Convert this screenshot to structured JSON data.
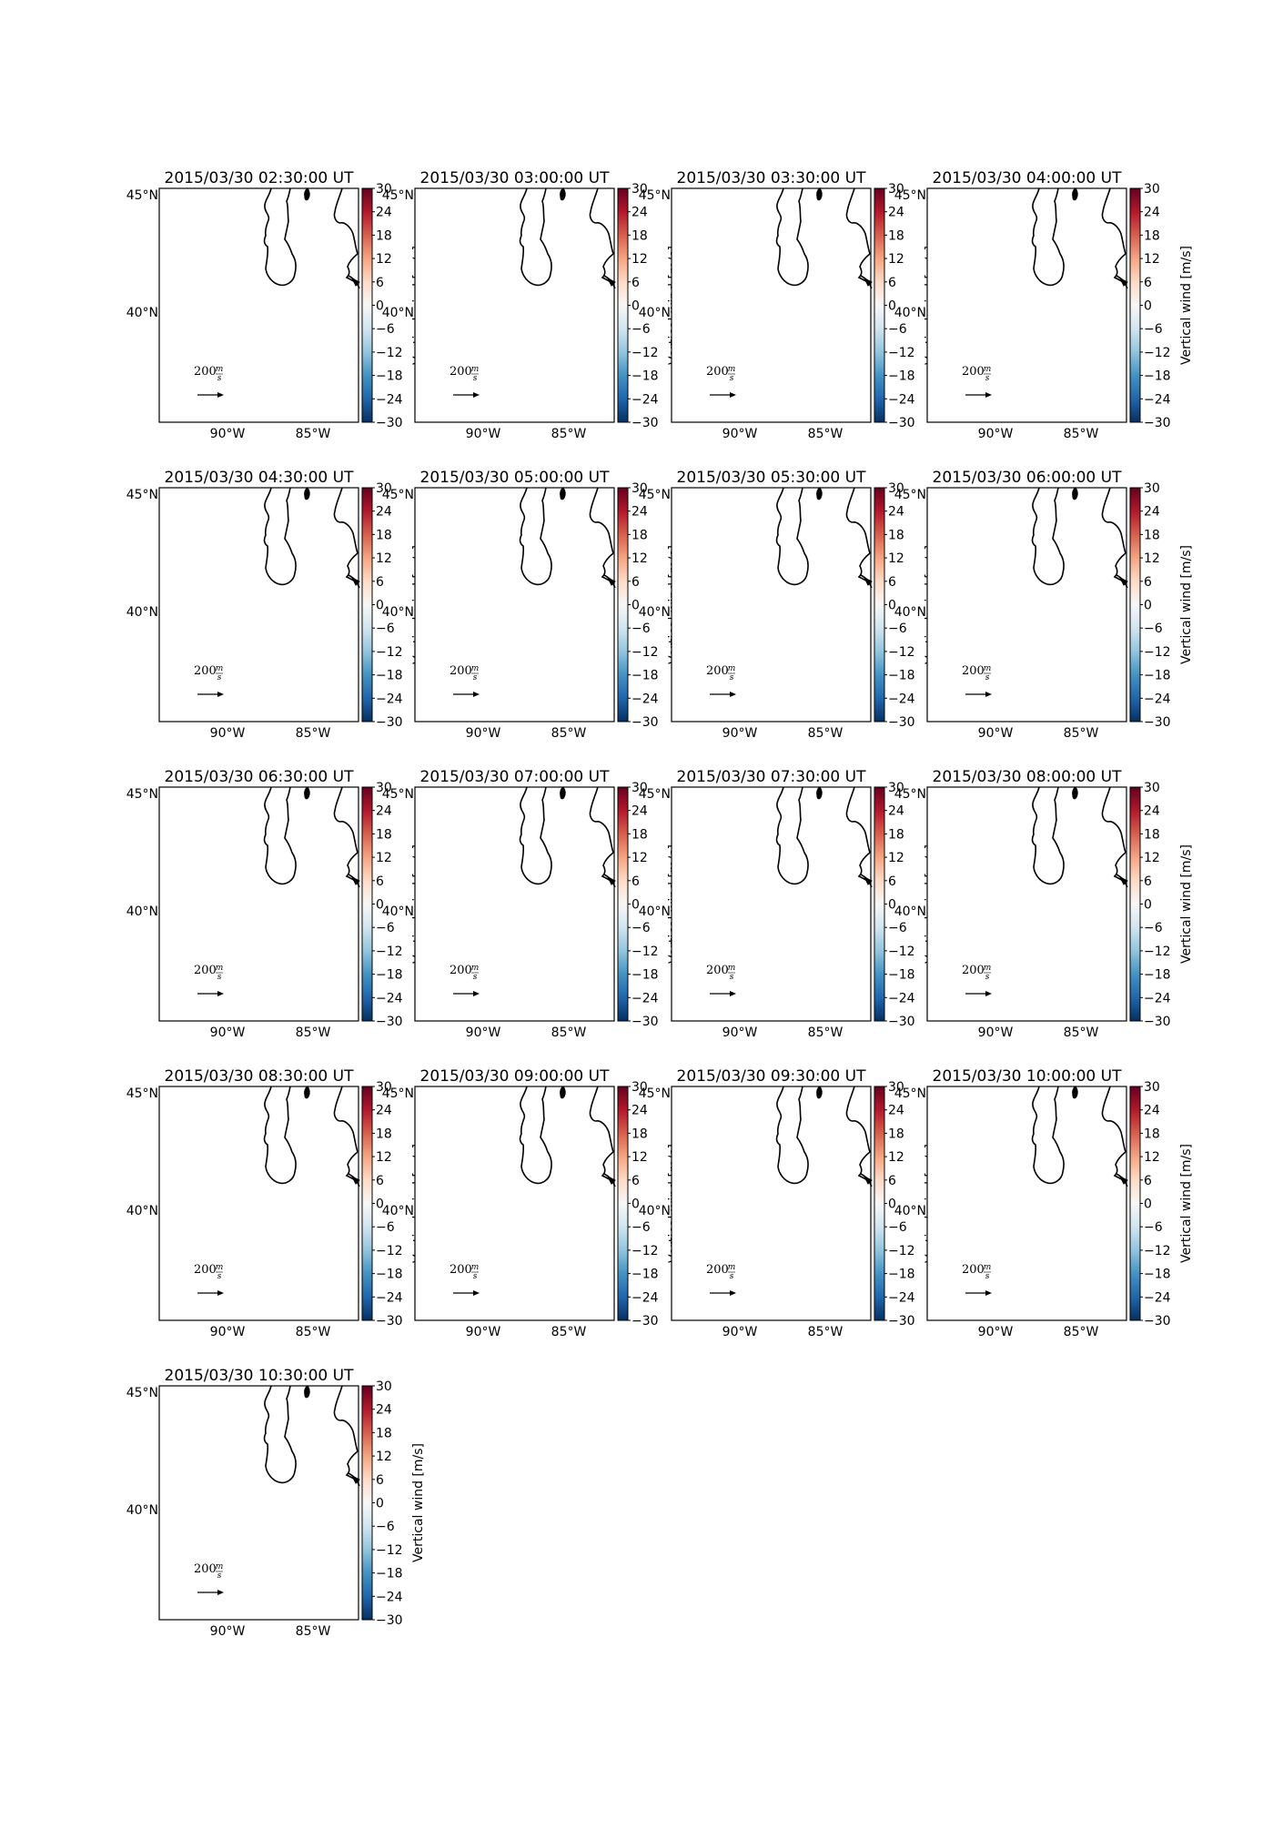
{
  "figure": {
    "panels": [
      {
        "title": "2015/03/30 02:30:00 UT"
      },
      {
        "title": "2015/03/30 03:00:00 UT"
      },
      {
        "title": "2015/03/30 03:30:00 UT"
      },
      {
        "title": "2015/03/30 04:00:00 UT"
      },
      {
        "title": "2015/03/30 04:30:00 UT"
      },
      {
        "title": "2015/03/30 05:00:00 UT"
      },
      {
        "title": "2015/03/30 05:30:00 UT"
      },
      {
        "title": "2015/03/30 06:00:00 UT"
      },
      {
        "title": "2015/03/30 06:30:00 UT"
      },
      {
        "title": "2015/03/30 07:00:00 UT"
      },
      {
        "title": "2015/03/30 07:30:00 UT"
      },
      {
        "title": "2015/03/30 08:00:00 UT"
      },
      {
        "title": "2015/03/30 08:30:00 UT"
      },
      {
        "title": "2015/03/30 09:00:00 UT"
      },
      {
        "title": "2015/03/30 09:30:00 UT"
      },
      {
        "title": "2015/03/30 10:00:00 UT"
      },
      {
        "title": "2015/03/30 10:30:00 UT"
      }
    ],
    "lon_ticks": [
      "90°W",
      "85°W"
    ],
    "lat_ticks": [
      "45°N",
      "40°N"
    ],
    "colorbar": {
      "label": "Vertical wind [m/s]",
      "ticks": [
        "30",
        "24",
        "18",
        "12",
        "6",
        "0",
        "−6",
        "−12",
        "−18",
        "−24",
        "−30"
      ],
      "colormap": [
        "#67001f",
        "#b2182b",
        "#d6604d",
        "#f4a582",
        "#fddbc7",
        "#f7f7f7",
        "#d1e5f0",
        "#92c5de",
        "#4393c3",
        "#2166ac",
        "#053061"
      ]
    },
    "quiver_key": {
      "value": "200",
      "unit_num": "m",
      "unit_den": "s"
    }
  }
}
